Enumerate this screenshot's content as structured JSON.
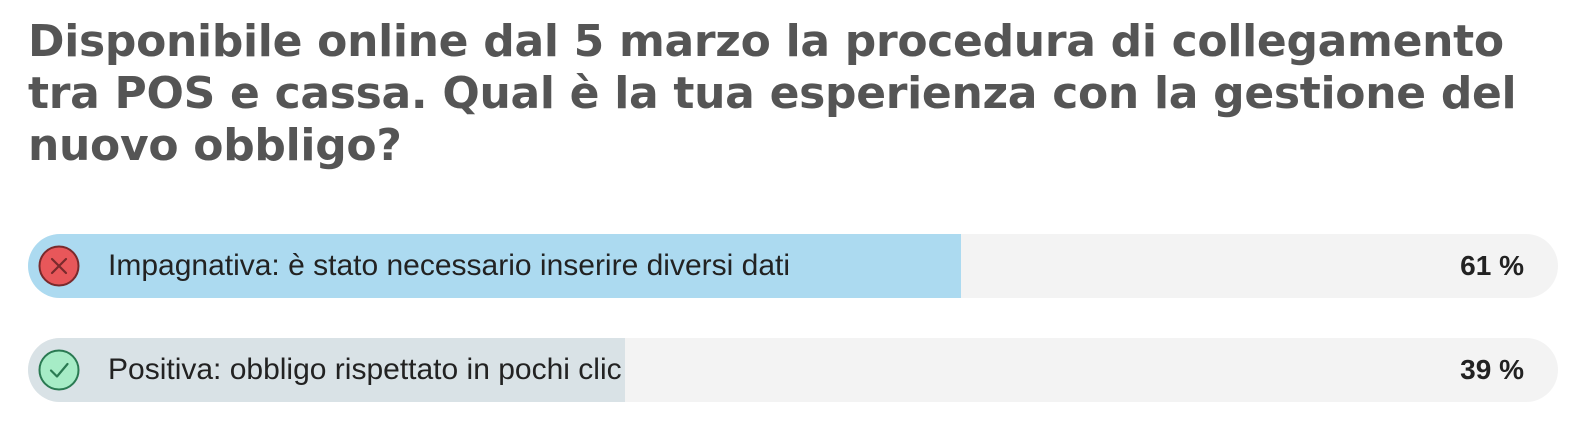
{
  "poll": {
    "question": "Disponibile online dal 5 marzo la procedura di collegamento tra POS e cassa. Qual è la tua esperienza con la gestione del nuovo obbligo?",
    "options": [
      {
        "label": "Impagnativa: è stato necessario inserire diversi dati",
        "percent_text": "61 %",
        "share": 0.61,
        "icon": "x-circle-icon",
        "fill_color": "#acdaf0",
        "icon_fill": "#e8575a",
        "icon_stroke": "#7a2a2c"
      },
      {
        "label": "Positiva: obbligo rispettato in pochi clic",
        "percent_text": "39 %",
        "share": 0.39,
        "icon": "check-circle-icon",
        "fill_color": "#d9e2e6",
        "icon_fill": "#a6ecc6",
        "icon_stroke": "#2a7a52"
      }
    ]
  }
}
